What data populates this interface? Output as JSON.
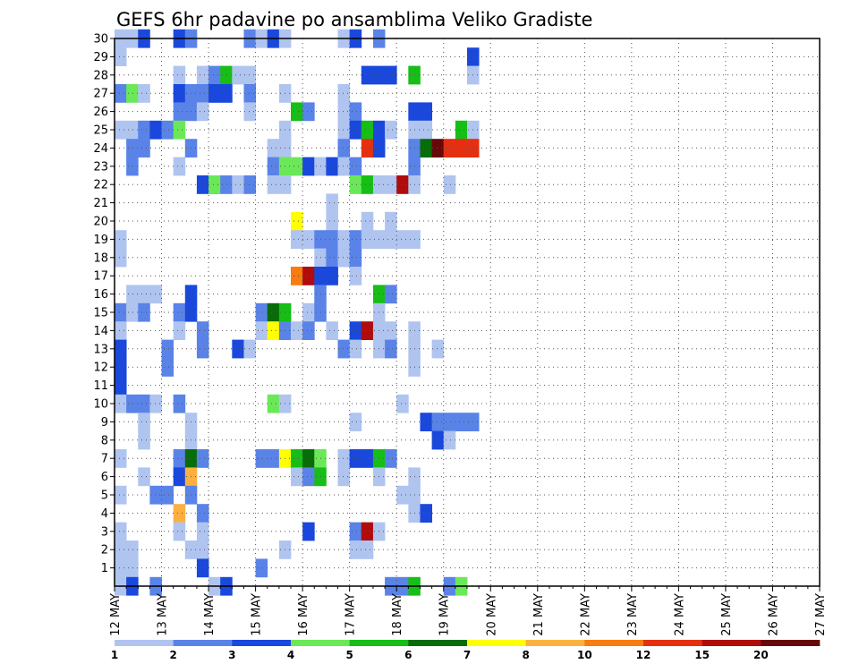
{
  "chart_data": {
    "type": "heatmap",
    "title": "GEFS 6hr padavine po ansamblima Veliko Gradiste",
    "x_tick_labels": [
      "12 MAY",
      "13 MAY",
      "14 MAY",
      "15 MAY",
      "16 MAY",
      "17 MAY",
      "18 MAY",
      "19 MAY",
      "20 MAY",
      "21 MAY",
      "22 MAY",
      "23 MAY",
      "24 MAY",
      "25 MAY",
      "26 MAY",
      "27 MAY"
    ],
    "y_tick_labels": [
      "1",
      "2",
      "3",
      "4",
      "5",
      "6",
      "7",
      "8",
      "9",
      "10",
      "11",
      "12",
      "13",
      "14",
      "15",
      "16",
      "17",
      "18",
      "19",
      "20",
      "21",
      "22",
      "23",
      "24",
      "25",
      "26",
      "27",
      "28",
      "29",
      "30"
    ],
    "n_steps": 60,
    "n_members": 31,
    "levels": [
      1,
      2,
      3,
      4,
      5,
      6,
      7,
      8,
      10,
      12,
      15,
      20
    ],
    "colorbar_labels": [
      "1",
      "2",
      "3",
      "4",
      "5",
      "6",
      "7",
      "8",
      "10",
      "12",
      "15",
      "20"
    ],
    "level_colors": [
      "#b0c4f0",
      "#5a83e8",
      "#1a48dc",
      "#6be858",
      "#16be16",
      "#086c08",
      "#ffff00",
      "#fcb040",
      "#f87c10",
      "#e43010",
      "#b00c0c",
      "#680808"
    ],
    "grid": "dotted",
    "cells": [
      [
        0,
        30,
        1
      ],
      [
        0,
        29,
        1
      ],
      [
        0,
        27,
        2
      ],
      [
        0,
        25,
        1
      ],
      [
        0,
        19,
        1
      ],
      [
        0,
        18,
        1
      ],
      [
        0,
        15,
        2
      ],
      [
        0,
        14,
        1
      ],
      [
        0,
        13,
        3
      ],
      [
        0,
        12,
        3
      ],
      [
        0,
        11,
        3
      ],
      [
        0,
        10,
        1
      ],
      [
        0,
        7,
        1
      ],
      [
        0,
        5,
        1
      ],
      [
        0,
        3,
        1
      ],
      [
        0,
        2,
        1
      ],
      [
        0,
        1,
        1
      ],
      [
        0,
        0,
        1
      ],
      [
        1,
        30,
        1
      ],
      [
        1,
        27,
        4
      ],
      [
        1,
        25,
        1
      ],
      [
        1,
        24,
        2
      ],
      [
        1,
        23,
        2
      ],
      [
        1,
        16,
        1
      ],
      [
        1,
        15,
        1
      ],
      [
        1,
        10,
        2
      ],
      [
        1,
        2,
        1
      ],
      [
        1,
        1,
        1
      ],
      [
        1,
        0,
        3
      ],
      [
        2,
        30,
        3
      ],
      [
        2,
        27,
        1
      ],
      [
        2,
        25,
        2
      ],
      [
        2,
        24,
        2
      ],
      [
        2,
        16,
        1
      ],
      [
        2,
        15,
        2
      ],
      [
        2,
        10,
        2
      ],
      [
        2,
        9,
        1
      ],
      [
        2,
        8,
        1
      ],
      [
        2,
        6,
        1
      ],
      [
        3,
        25,
        3
      ],
      [
        3,
        16,
        1
      ],
      [
        3,
        10,
        1
      ],
      [
        3,
        5,
        2
      ],
      [
        3,
        0,
        2
      ],
      [
        4,
        25,
        2
      ],
      [
        4,
        13,
        2
      ],
      [
        4,
        12,
        2
      ],
      [
        4,
        5,
        2
      ],
      [
        5,
        30,
        3
      ],
      [
        5,
        28,
        1
      ],
      [
        5,
        27,
        3
      ],
      [
        5,
        26,
        2
      ],
      [
        5,
        25,
        4
      ],
      [
        5,
        23,
        1
      ],
      [
        5,
        15,
        2
      ],
      [
        5,
        14,
        1
      ],
      [
        5,
        10,
        2
      ],
      [
        5,
        7,
        2
      ],
      [
        5,
        6,
        3
      ],
      [
        5,
        4,
        8
      ],
      [
        5,
        3,
        1
      ],
      [
        6,
        30,
        2
      ],
      [
        6,
        27,
        2
      ],
      [
        6,
        26,
        2
      ],
      [
        6,
        24,
        2
      ],
      [
        6,
        16,
        3
      ],
      [
        6,
        15,
        3
      ],
      [
        6,
        9,
        1
      ],
      [
        6,
        8,
        1
      ],
      [
        6,
        7,
        6
      ],
      [
        6,
        6,
        8
      ],
      [
        6,
        5,
        2
      ],
      [
        6,
        2,
        1
      ],
      [
        7,
        28,
        1
      ],
      [
        7,
        27,
        2
      ],
      [
        7,
        26,
        1
      ],
      [
        7,
        22,
        3
      ],
      [
        7,
        14,
        2
      ],
      [
        7,
        13,
        2
      ],
      [
        7,
        7,
        2
      ],
      [
        7,
        4,
        2
      ],
      [
        7,
        3,
        1
      ],
      [
        7,
        2,
        1
      ],
      [
        7,
        1,
        3
      ],
      [
        8,
        28,
        2
      ],
      [
        8,
        27,
        3
      ],
      [
        8,
        22,
        2
      ],
      [
        8,
        22,
        4
      ],
      [
        8,
        0,
        1
      ],
      [
        9,
        28,
        5
      ],
      [
        9,
        27,
        3
      ],
      [
        9,
        22,
        2
      ],
      [
        9,
        0,
        3
      ],
      [
        10,
        28,
        1
      ],
      [
        10,
        22,
        1
      ],
      [
        10,
        13,
        3
      ],
      [
        11,
        30,
        2
      ],
      [
        11,
        28,
        1
      ],
      [
        11,
        27,
        2
      ],
      [
        11,
        26,
        1
      ],
      [
        11,
        22,
        2
      ],
      [
        11,
        13,
        1
      ],
      [
        12,
        30,
        1
      ],
      [
        12,
        15,
        2
      ],
      [
        12,
        14,
        1
      ],
      [
        12,
        7,
        2
      ],
      [
        12,
        1,
        2
      ],
      [
        13,
        30,
        3
      ],
      [
        13,
        24,
        1
      ],
      [
        13,
        23,
        2
      ],
      [
        13,
        22,
        1
      ],
      [
        13,
        15,
        6
      ],
      [
        13,
        14,
        7
      ],
      [
        13,
        10,
        4
      ],
      [
        13,
        7,
        2
      ],
      [
        14,
        30,
        1
      ],
      [
        14,
        27,
        1
      ],
      [
        14,
        25,
        1
      ],
      [
        14,
        24,
        1
      ],
      [
        14,
        23,
        4
      ],
      [
        14,
        22,
        1
      ],
      [
        14,
        15,
        5
      ],
      [
        14,
        14,
        2
      ],
      [
        14,
        10,
        1
      ],
      [
        14,
        7,
        7
      ],
      [
        14,
        2,
        1
      ],
      [
        15,
        26,
        5
      ],
      [
        15,
        23,
        4
      ],
      [
        15,
        20,
        7
      ],
      [
        15,
        19,
        1
      ],
      [
        15,
        17,
        9
      ],
      [
        15,
        14,
        1
      ],
      [
        15,
        7,
        5
      ],
      [
        15,
        6,
        1
      ],
      [
        16,
        26,
        2
      ],
      [
        16,
        23,
        3
      ],
      [
        16,
        19,
        1
      ],
      [
        16,
        17,
        11
      ],
      [
        16,
        15,
        1
      ],
      [
        16,
        14,
        2
      ],
      [
        16,
        7,
        6
      ],
      [
        16,
        6,
        2
      ],
      [
        16,
        3,
        3
      ],
      [
        17,
        23,
        1
      ],
      [
        17,
        19,
        2
      ],
      [
        17,
        18,
        1
      ],
      [
        17,
        17,
        3
      ],
      [
        17,
        16,
        2
      ],
      [
        17,
        15,
        2
      ],
      [
        17,
        7,
        4
      ],
      [
        17,
        6,
        5
      ],
      [
        18,
        23,
        3
      ],
      [
        18,
        21,
        1
      ],
      [
        18,
        20,
        1
      ],
      [
        18,
        19,
        2
      ],
      [
        18,
        18,
        2
      ],
      [
        18,
        17,
        3
      ],
      [
        18,
        14,
        1
      ],
      [
        19,
        30,
        1
      ],
      [
        19,
        27,
        1
      ],
      [
        19,
        26,
        1
      ],
      [
        19,
        25,
        1
      ],
      [
        19,
        24,
        2
      ],
      [
        19,
        23,
        1
      ],
      [
        19,
        19,
        1
      ],
      [
        19,
        18,
        1
      ],
      [
        19,
        13,
        2
      ],
      [
        19,
        7,
        1
      ],
      [
        19,
        6,
        1
      ],
      [
        20,
        30,
        3
      ],
      [
        20,
        26,
        2
      ],
      [
        20,
        25,
        3
      ],
      [
        20,
        23,
        2
      ],
      [
        20,
        22,
        4
      ],
      [
        20,
        19,
        2
      ],
      [
        20,
        18,
        2
      ],
      [
        20,
        17,
        1
      ],
      [
        20,
        14,
        3
      ],
      [
        20,
        13,
        1
      ],
      [
        20,
        9,
        1
      ],
      [
        20,
        7,
        3
      ],
      [
        20,
        3,
        2
      ],
      [
        20,
        2,
        1
      ],
      [
        21,
        28,
        3
      ],
      [
        21,
        25,
        5
      ],
      [
        21,
        24,
        10
      ],
      [
        21,
        22,
        5
      ],
      [
        21,
        20,
        1
      ],
      [
        21,
        19,
        1
      ],
      [
        21,
        14,
        11
      ],
      [
        21,
        7,
        3
      ],
      [
        21,
        3,
        11
      ],
      [
        21,
        2,
        1
      ],
      [
        22,
        30,
        2
      ],
      [
        22,
        28,
        3
      ],
      [
        22,
        25,
        3
      ],
      [
        22,
        24,
        3
      ],
      [
        22,
        22,
        1
      ],
      [
        22,
        19,
        1
      ],
      [
        22,
        16,
        5
      ],
      [
        22,
        15,
        1
      ],
      [
        22,
        14,
        1
      ],
      [
        22,
        13,
        1
      ],
      [
        22,
        7,
        5
      ],
      [
        22,
        6,
        1
      ],
      [
        22,
        3,
        1
      ],
      [
        23,
        28,
        3
      ],
      [
        23,
        25,
        1
      ],
      [
        23,
        22,
        1
      ],
      [
        23,
        20,
        1
      ],
      [
        23,
        19,
        1
      ],
      [
        23,
        16,
        2
      ],
      [
        23,
        14,
        1
      ],
      [
        23,
        13,
        2
      ],
      [
        23,
        7,
        2
      ],
      [
        23,
        0,
        2
      ],
      [
        24,
        22,
        11
      ],
      [
        24,
        19,
        1
      ],
      [
        24,
        10,
        1
      ],
      [
        24,
        5,
        1
      ],
      [
        24,
        0,
        2
      ],
      [
        25,
        28,
        5
      ],
      [
        25,
        26,
        3
      ],
      [
        25,
        25,
        1
      ],
      [
        25,
        24,
        2
      ],
      [
        25,
        23,
        2
      ],
      [
        25,
        22,
        1
      ],
      [
        25,
        19,
        1
      ],
      [
        25,
        14,
        1
      ],
      [
        25,
        13,
        1
      ],
      [
        25,
        12,
        1
      ],
      [
        25,
        6,
        1
      ],
      [
        25,
        5,
        1
      ],
      [
        25,
        4,
        1
      ],
      [
        25,
        0,
        5
      ],
      [
        26,
        26,
        3
      ],
      [
        26,
        25,
        1
      ],
      [
        26,
        24,
        6
      ],
      [
        26,
        9,
        3
      ],
      [
        26,
        4,
        3
      ],
      [
        27,
        24,
        12
      ],
      [
        27,
        13,
        1
      ],
      [
        27,
        9,
        2
      ],
      [
        27,
        8,
        3
      ],
      [
        28,
        24,
        10
      ],
      [
        28,
        22,
        1
      ],
      [
        28,
        9,
        2
      ],
      [
        28,
        8,
        1
      ],
      [
        28,
        0,
        2
      ],
      [
        29,
        25,
        5
      ],
      [
        29,
        24,
        10
      ],
      [
        29,
        9,
        2
      ],
      [
        29,
        0,
        4
      ],
      [
        30,
        29,
        3
      ],
      [
        30,
        28,
        1
      ],
      [
        30,
        25,
        1
      ],
      [
        30,
        24,
        10
      ],
      [
        30,
        9,
        2
      ]
    ]
  }
}
